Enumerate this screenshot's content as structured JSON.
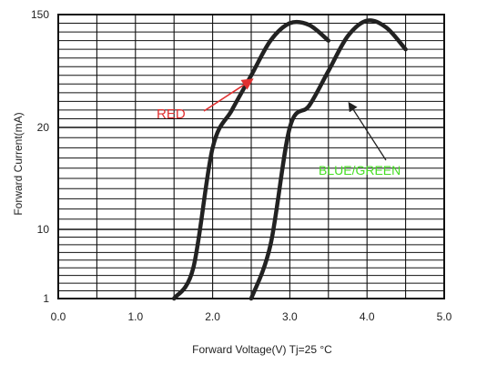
{
  "chart_data": {
    "type": "line",
    "title": "",
    "xlabel": "Forward Voltage(V) Tj=25 °C",
    "ylabel": "Forward Current(mA)",
    "xlim": [
      0.0,
      5.0
    ],
    "x_ticks": [
      "0.0",
      "1.0",
      "2.0",
      "3.0",
      "4.0",
      "5.0"
    ],
    "y_ticks": [
      "1",
      "10",
      "20",
      "150"
    ],
    "grid": true,
    "series": [
      {
        "name": "RED",
        "color": "#222222",
        "points": [
          {
            "x": 1.5,
            "y": 1
          },
          {
            "x": 1.75,
            "y": 5
          },
          {
            "x": 2.0,
            "y": 18
          },
          {
            "x": 2.25,
            "y": 40
          },
          {
            "x": 2.5,
            "y": 80
          },
          {
            "x": 2.75,
            "y": 120
          },
          {
            "x": 3.0,
            "y": 140
          },
          {
            "x": 3.25,
            "y": 138
          },
          {
            "x": 3.5,
            "y": 120
          }
        ]
      },
      {
        "name": "BLUE/GREEN",
        "color": "#222222",
        "points": [
          {
            "x": 2.5,
            "y": 1
          },
          {
            "x": 2.75,
            "y": 8
          },
          {
            "x": 3.0,
            "y": 20
          },
          {
            "x": 3.25,
            "y": 45
          },
          {
            "x": 3.5,
            "y": 85
          },
          {
            "x": 3.75,
            "y": 125
          },
          {
            "x": 4.0,
            "y": 143
          },
          {
            "x": 4.25,
            "y": 135
          },
          {
            "x": 4.5,
            "y": 110
          }
        ]
      }
    ],
    "annotations": [
      {
        "text": "RED",
        "color": "#e03030"
      },
      {
        "text": "BLUE/GREEN",
        "color": "#44dd22"
      }
    ]
  }
}
